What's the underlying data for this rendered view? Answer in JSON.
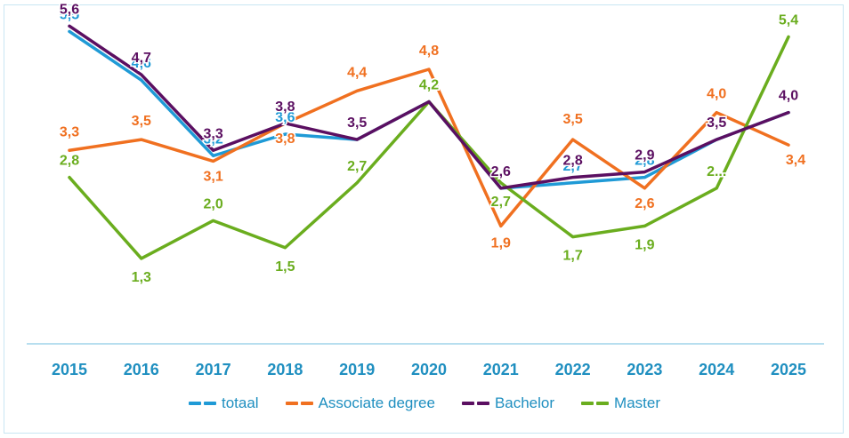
{
  "chart_data": {
    "type": "line",
    "title": "",
    "xlabel": "",
    "ylabel": "",
    "ylim": [
      0,
      6
    ],
    "grid": false,
    "legend": "bottom",
    "categories": [
      "2015",
      "2016",
      "2017",
      "2018",
      "2019",
      "2020",
      "2021",
      "2022",
      "2023",
      "2024",
      "2025"
    ],
    "series": [
      {
        "name": "totaal",
        "color": "#1f9ad6",
        "values": [
          5.5,
          4.6,
          3.2,
          3.6,
          3.5,
          4.2,
          2.6,
          2.7,
          2.8,
          3.5,
          4.0
        ],
        "labels": [
          "5,5",
          "4,6",
          "3,2",
          "3,6",
          "3,5",
          "4,2",
          "2,6",
          "2,7",
          "2,8",
          "3,5",
          "4,0"
        ]
      },
      {
        "name": "Associate degree",
        "color": "#f07020",
        "values": [
          3.3,
          3.5,
          3.1,
          3.8,
          4.4,
          4.8,
          1.9,
          3.5,
          2.6,
          4.0,
          3.4
        ],
        "labels": [
          "3,3",
          "3,5",
          "3,1",
          "3,8",
          "4,4",
          "4,8",
          "1,9",
          "3,5",
          "2,6",
          "4,0",
          "3,4"
        ]
      },
      {
        "name": "Bachelor",
        "color": "#5b0f61",
        "values": [
          5.6,
          4.7,
          3.3,
          3.8,
          3.5,
          4.2,
          2.6,
          2.8,
          2.9,
          3.5,
          4.0
        ],
        "labels": [
          "5,6",
          "4,7",
          "3,3",
          "3,8",
          "3,5",
          "4,2",
          "2,6",
          "2,8",
          "2,9",
          "3,5",
          "4,0"
        ]
      },
      {
        "name": "Master",
        "color": "#6aad1e",
        "values": [
          2.8,
          1.3,
          2.0,
          1.5,
          2.7,
          4.2,
          2.7,
          1.7,
          1.9,
          2.6,
          5.4
        ],
        "labels": [
          "2,8",
          "1,3",
          "2,0",
          "1,5",
          "2,7",
          "4,2",
          "2,7",
          "1,7",
          "1,9",
          "2...",
          "5,4"
        ]
      }
    ]
  },
  "colors": {
    "axis": "#9fd3ea",
    "tick_label": "#1f8fc0",
    "frame_border": "#c9e6f3"
  }
}
